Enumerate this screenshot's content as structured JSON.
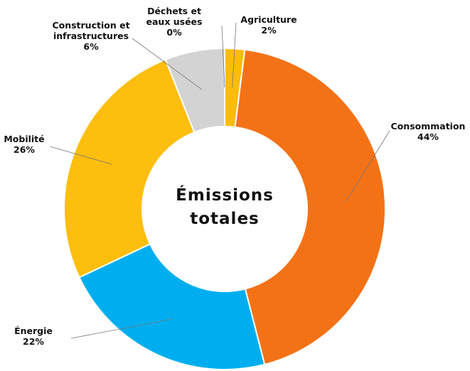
{
  "chart_data": {
    "type": "donut",
    "center_label": [
      "Émissions",
      "totales"
    ],
    "categories": [
      "Agriculture",
      "Consommation",
      "Énergie",
      "Mobilité",
      "Construction et infrastructures",
      "Déchets et eaux usées"
    ],
    "values": [
      2,
      44,
      22,
      26,
      6,
      0
    ],
    "value_labels": [
      "2%",
      "44%",
      "22%",
      "26%",
      "6%",
      "0%"
    ],
    "colors": [
      "#fbbc0c",
      "#f47216",
      "#00aeef",
      "#fdbe0d",
      "#d3d3d3",
      "#c8c8c8"
    ]
  }
}
